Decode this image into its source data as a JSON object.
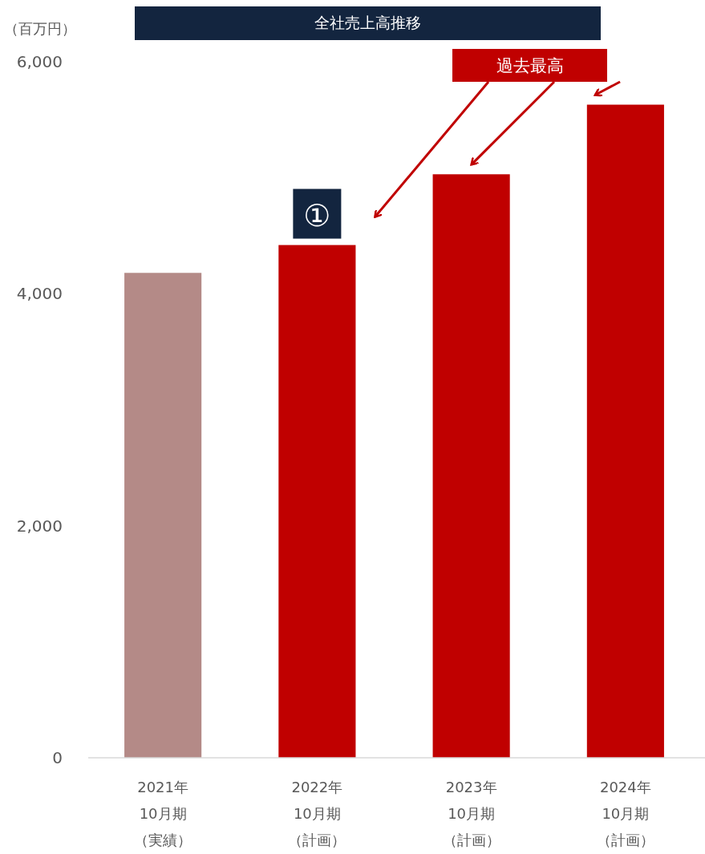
{
  "chart_data": {
    "type": "bar",
    "title": "全社売上高推移",
    "ylabel": "（百万円）",
    "categories": [
      "2021年 10月期（実績）",
      "2022年 10月期（計画）",
      "2023年 10月期（計画）",
      "2024年 10月期（計画）"
    ],
    "values": [
      4180,
      4420,
      5030,
      5630
    ],
    "colors": [
      "#b48a87",
      "#c00000",
      "#c00000",
      "#c00000"
    ],
    "ylim": [
      0,
      6000
    ],
    "yticks": [
      {
        "value": 0,
        "label": "0"
      },
      {
        "value": 2000,
        "label": "2,000"
      },
      {
        "value": 4000,
        "label": "4,000"
      },
      {
        "value": 6000,
        "label": "6,000"
      }
    ],
    "grid": false,
    "annotations": [
      "過去最高",
      {
        "text": "①",
        "x": "2022年 10月期（計画）",
        "y": 4420
      }
    ]
  }
}
